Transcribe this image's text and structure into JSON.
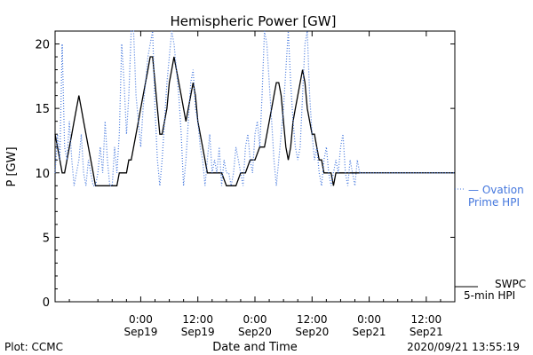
{
  "chart_data": {
    "type": "line",
    "title": "Hemispheric Power [GW]",
    "xlabel": "Date and Time",
    "ylabel": "P [GW]",
    "ylim": [
      0,
      21
    ],
    "yticks": [
      0,
      5,
      10,
      15,
      20
    ],
    "xlim_hours": [
      -18,
      36
    ],
    "x_ticks": [
      {
        "time": "0:00",
        "date": "Sep19",
        "h": 0
      },
      {
        "time": "12:00",
        "date": "Sep19",
        "h": 12
      },
      {
        "time": "0:00",
        "date": "Sep20",
        "h": 24
      },
      {
        "time": "12:00",
        "date": "Sep20",
        "h": 36
      },
      {
        "time": "0:00",
        "date": "Sep21",
        "h": 48
      },
      {
        "time": "12:00",
        "date": "Sep21",
        "h": 60
      }
    ],
    "series": [
      {
        "name": "SWPC 5-min HPI",
        "color": "#000000",
        "style": "solid",
        "points": [
          [
            -18,
            13
          ],
          [
            -17.5,
            12
          ],
          [
            -17,
            11
          ],
          [
            -16.5,
            10
          ],
          [
            -16,
            10
          ],
          [
            -15.5,
            11
          ],
          [
            -15,
            12
          ],
          [
            -14.5,
            13
          ],
          [
            -14,
            14
          ],
          [
            -13.5,
            15
          ],
          [
            -13,
            16
          ],
          [
            -12.5,
            15
          ],
          [
            -12,
            14
          ],
          [
            -11.5,
            13
          ],
          [
            -11,
            12
          ],
          [
            -10.5,
            11
          ],
          [
            -10,
            10
          ],
          [
            -9.5,
            9
          ],
          [
            -9,
            9
          ],
          [
            -8,
            9
          ],
          [
            -7,
            9
          ],
          [
            -6,
            9
          ],
          [
            -5,
            9
          ],
          [
            -4.5,
            10
          ],
          [
            -4,
            10
          ],
          [
            -3.5,
            10
          ],
          [
            -3,
            10
          ],
          [
            -2.5,
            11
          ],
          [
            -2,
            11
          ],
          [
            -1.5,
            12
          ],
          [
            -1,
            13
          ],
          [
            -0.5,
            14
          ],
          [
            0,
            15
          ],
          [
            0.5,
            16
          ],
          [
            1,
            17
          ],
          [
            1.5,
            18
          ],
          [
            2,
            19
          ],
          [
            2.5,
            19
          ],
          [
            3,
            17
          ],
          [
            3.5,
            15
          ],
          [
            4,
            13
          ],
          [
            4.5,
            13
          ],
          [
            5,
            14
          ],
          [
            5.5,
            15
          ],
          [
            6,
            17
          ],
          [
            6.5,
            18
          ],
          [
            7,
            19
          ],
          [
            7.5,
            18
          ],
          [
            8,
            17
          ],
          [
            8.5,
            16
          ],
          [
            9,
            15
          ],
          [
            9.5,
            14
          ],
          [
            10,
            15
          ],
          [
            10.5,
            16
          ],
          [
            11,
            17
          ],
          [
            11.5,
            16
          ],
          [
            12,
            14
          ],
          [
            12.5,
            13
          ],
          [
            13,
            12
          ],
          [
            13.5,
            11
          ],
          [
            14,
            10
          ],
          [
            14.5,
            10
          ],
          [
            15,
            10
          ],
          [
            16,
            10
          ],
          [
            17,
            10
          ],
          [
            18,
            9
          ],
          [
            19,
            9
          ],
          [
            20,
            9
          ],
          [
            21,
            10
          ],
          [
            22,
            10
          ],
          [
            23,
            11
          ],
          [
            24,
            11
          ],
          [
            25,
            12
          ],
          [
            26,
            12
          ],
          [
            26.5,
            13
          ],
          [
            27,
            14
          ],
          [
            27.5,
            15
          ],
          [
            28,
            16
          ],
          [
            28.5,
            17
          ],
          [
            29,
            17
          ],
          [
            29.5,
            16
          ],
          [
            30,
            14
          ],
          [
            30.5,
            12
          ],
          [
            31,
            11
          ],
          [
            31.5,
            12
          ],
          [
            32,
            14
          ],
          [
            32.5,
            15
          ],
          [
            33,
            16
          ],
          [
            33.5,
            17
          ],
          [
            34,
            18
          ],
          [
            34.5,
            17
          ],
          [
            35,
            15
          ],
          [
            35.5,
            14
          ],
          [
            36,
            13
          ],
          [
            36.5,
            13
          ],
          [
            37,
            12
          ],
          [
            37.5,
            11
          ],
          [
            38,
            11
          ],
          [
            38.5,
            10
          ],
          [
            39,
            10
          ],
          [
            39.5,
            10
          ],
          [
            40,
            10
          ],
          [
            40.5,
            9
          ],
          [
            41,
            10
          ],
          [
            42,
            10
          ],
          [
            43,
            10
          ],
          [
            44,
            10
          ],
          [
            45,
            10
          ],
          [
            46,
            10
          ]
        ]
      },
      {
        "name": "Ovation Prime HPI",
        "color": "#4477dd",
        "style": "dotted",
        "points": [
          [
            -18,
            10
          ],
          [
            -17.5,
            13
          ],
          [
            -17,
            11
          ],
          [
            -16.5,
            20
          ],
          [
            -16,
            12
          ],
          [
            -15.5,
            11
          ],
          [
            -15,
            14
          ],
          [
            -14.5,
            11
          ],
          [
            -14,
            9
          ],
          [
            -13.5,
            10
          ],
          [
            -13,
            11
          ],
          [
            -12.5,
            13
          ],
          [
            -12,
            10
          ],
          [
            -11.5,
            9
          ],
          [
            -11,
            11
          ],
          [
            -10.5,
            10
          ],
          [
            -10,
            9
          ],
          [
            -9.5,
            9
          ],
          [
            -9,
            10
          ],
          [
            -8.5,
            12
          ],
          [
            -8,
            10
          ],
          [
            -7.5,
            14
          ],
          [
            -7,
            11
          ],
          [
            -6.5,
            9
          ],
          [
            -6,
            9
          ],
          [
            -5.5,
            12
          ],
          [
            -5,
            10
          ],
          [
            -4.5,
            13
          ],
          [
            -4,
            20
          ],
          [
            -3.5,
            17
          ],
          [
            -3,
            13
          ],
          [
            -2.5,
            16
          ],
          [
            -2,
            21
          ],
          [
            -1.5,
            21
          ],
          [
            -1,
            16
          ],
          [
            -0.5,
            14
          ],
          [
            0,
            12
          ],
          [
            0.5,
            15
          ],
          [
            1,
            17
          ],
          [
            1.5,
            19
          ],
          [
            2,
            20
          ],
          [
            2.5,
            21
          ],
          [
            3,
            15
          ],
          [
            3.5,
            11
          ],
          [
            4,
            9
          ],
          [
            4.5,
            11
          ],
          [
            5,
            14
          ],
          [
            5.5,
            17
          ],
          [
            6,
            19
          ],
          [
            6.5,
            21
          ],
          [
            7,
            20
          ],
          [
            7.5,
            18
          ],
          [
            8,
            16
          ],
          [
            8.5,
            13
          ],
          [
            9,
            9
          ],
          [
            9.5,
            11
          ],
          [
            10,
            14
          ],
          [
            10.5,
            17
          ],
          [
            11,
            18
          ],
          [
            11.5,
            15
          ],
          [
            12,
            14
          ],
          [
            12.5,
            12
          ],
          [
            13,
            11
          ],
          [
            13.5,
            9
          ],
          [
            14,
            11
          ],
          [
            14.5,
            13
          ],
          [
            15,
            10
          ],
          [
            15.5,
            11
          ],
          [
            16,
            10
          ],
          [
            16.5,
            12
          ],
          [
            17,
            9
          ],
          [
            17.5,
            11
          ],
          [
            18,
            10
          ],
          [
            18.5,
            10
          ],
          [
            19,
            9
          ],
          [
            19.5,
            10
          ],
          [
            20,
            12
          ],
          [
            20.5,
            11
          ],
          [
            21,
            10
          ],
          [
            21.5,
            9
          ],
          [
            22,
            12
          ],
          [
            22.5,
            13
          ],
          [
            23,
            11
          ],
          [
            23.5,
            10
          ],
          [
            24,
            13
          ],
          [
            24.5,
            14
          ],
          [
            25,
            12
          ],
          [
            25.5,
            16
          ],
          [
            26,
            21
          ],
          [
            26.5,
            20
          ],
          [
            27,
            17
          ],
          [
            27.5,
            14
          ],
          [
            28,
            11
          ],
          [
            28.5,
            9
          ],
          [
            29,
            11
          ],
          [
            29.5,
            13
          ],
          [
            30,
            15
          ],
          [
            30.5,
            18
          ],
          [
            31,
            21
          ],
          [
            31.5,
            17
          ],
          [
            32,
            14
          ],
          [
            32.5,
            12
          ],
          [
            33,
            11
          ],
          [
            33.5,
            12
          ],
          [
            34,
            16
          ],
          [
            34.5,
            20
          ],
          [
            35,
            21
          ],
          [
            35.5,
            16
          ],
          [
            36,
            13
          ],
          [
            36.5,
            11
          ],
          [
            37,
            12
          ],
          [
            37.5,
            10
          ],
          [
            38,
            9
          ],
          [
            38.5,
            11
          ],
          [
            39,
            12
          ],
          [
            39.5,
            10
          ],
          [
            40,
            9
          ],
          [
            40.5,
            10
          ],
          [
            41,
            11
          ],
          [
            41.5,
            10
          ],
          [
            42,
            12
          ],
          [
            42.5,
            13
          ],
          [
            43,
            10
          ],
          [
            43.5,
            9
          ],
          [
            44,
            11
          ],
          [
            44.5,
            10
          ],
          [
            45,
            9
          ],
          [
            45.5,
            11
          ],
          [
            46,
            10
          ]
        ]
      }
    ]
  },
  "legend": {
    "swpc_line1": "SWPC",
    "swpc_line2": "5-min HPI",
    "ovation_line1": "— Ovation",
    "ovation_line2": "Prime HPI"
  },
  "footer": {
    "plot_credit": "Plot: CCMC",
    "timestamp": "2020/09/21 13:55:19"
  },
  "colors": {
    "swpc": "#000000",
    "ovation": "#4477dd"
  }
}
